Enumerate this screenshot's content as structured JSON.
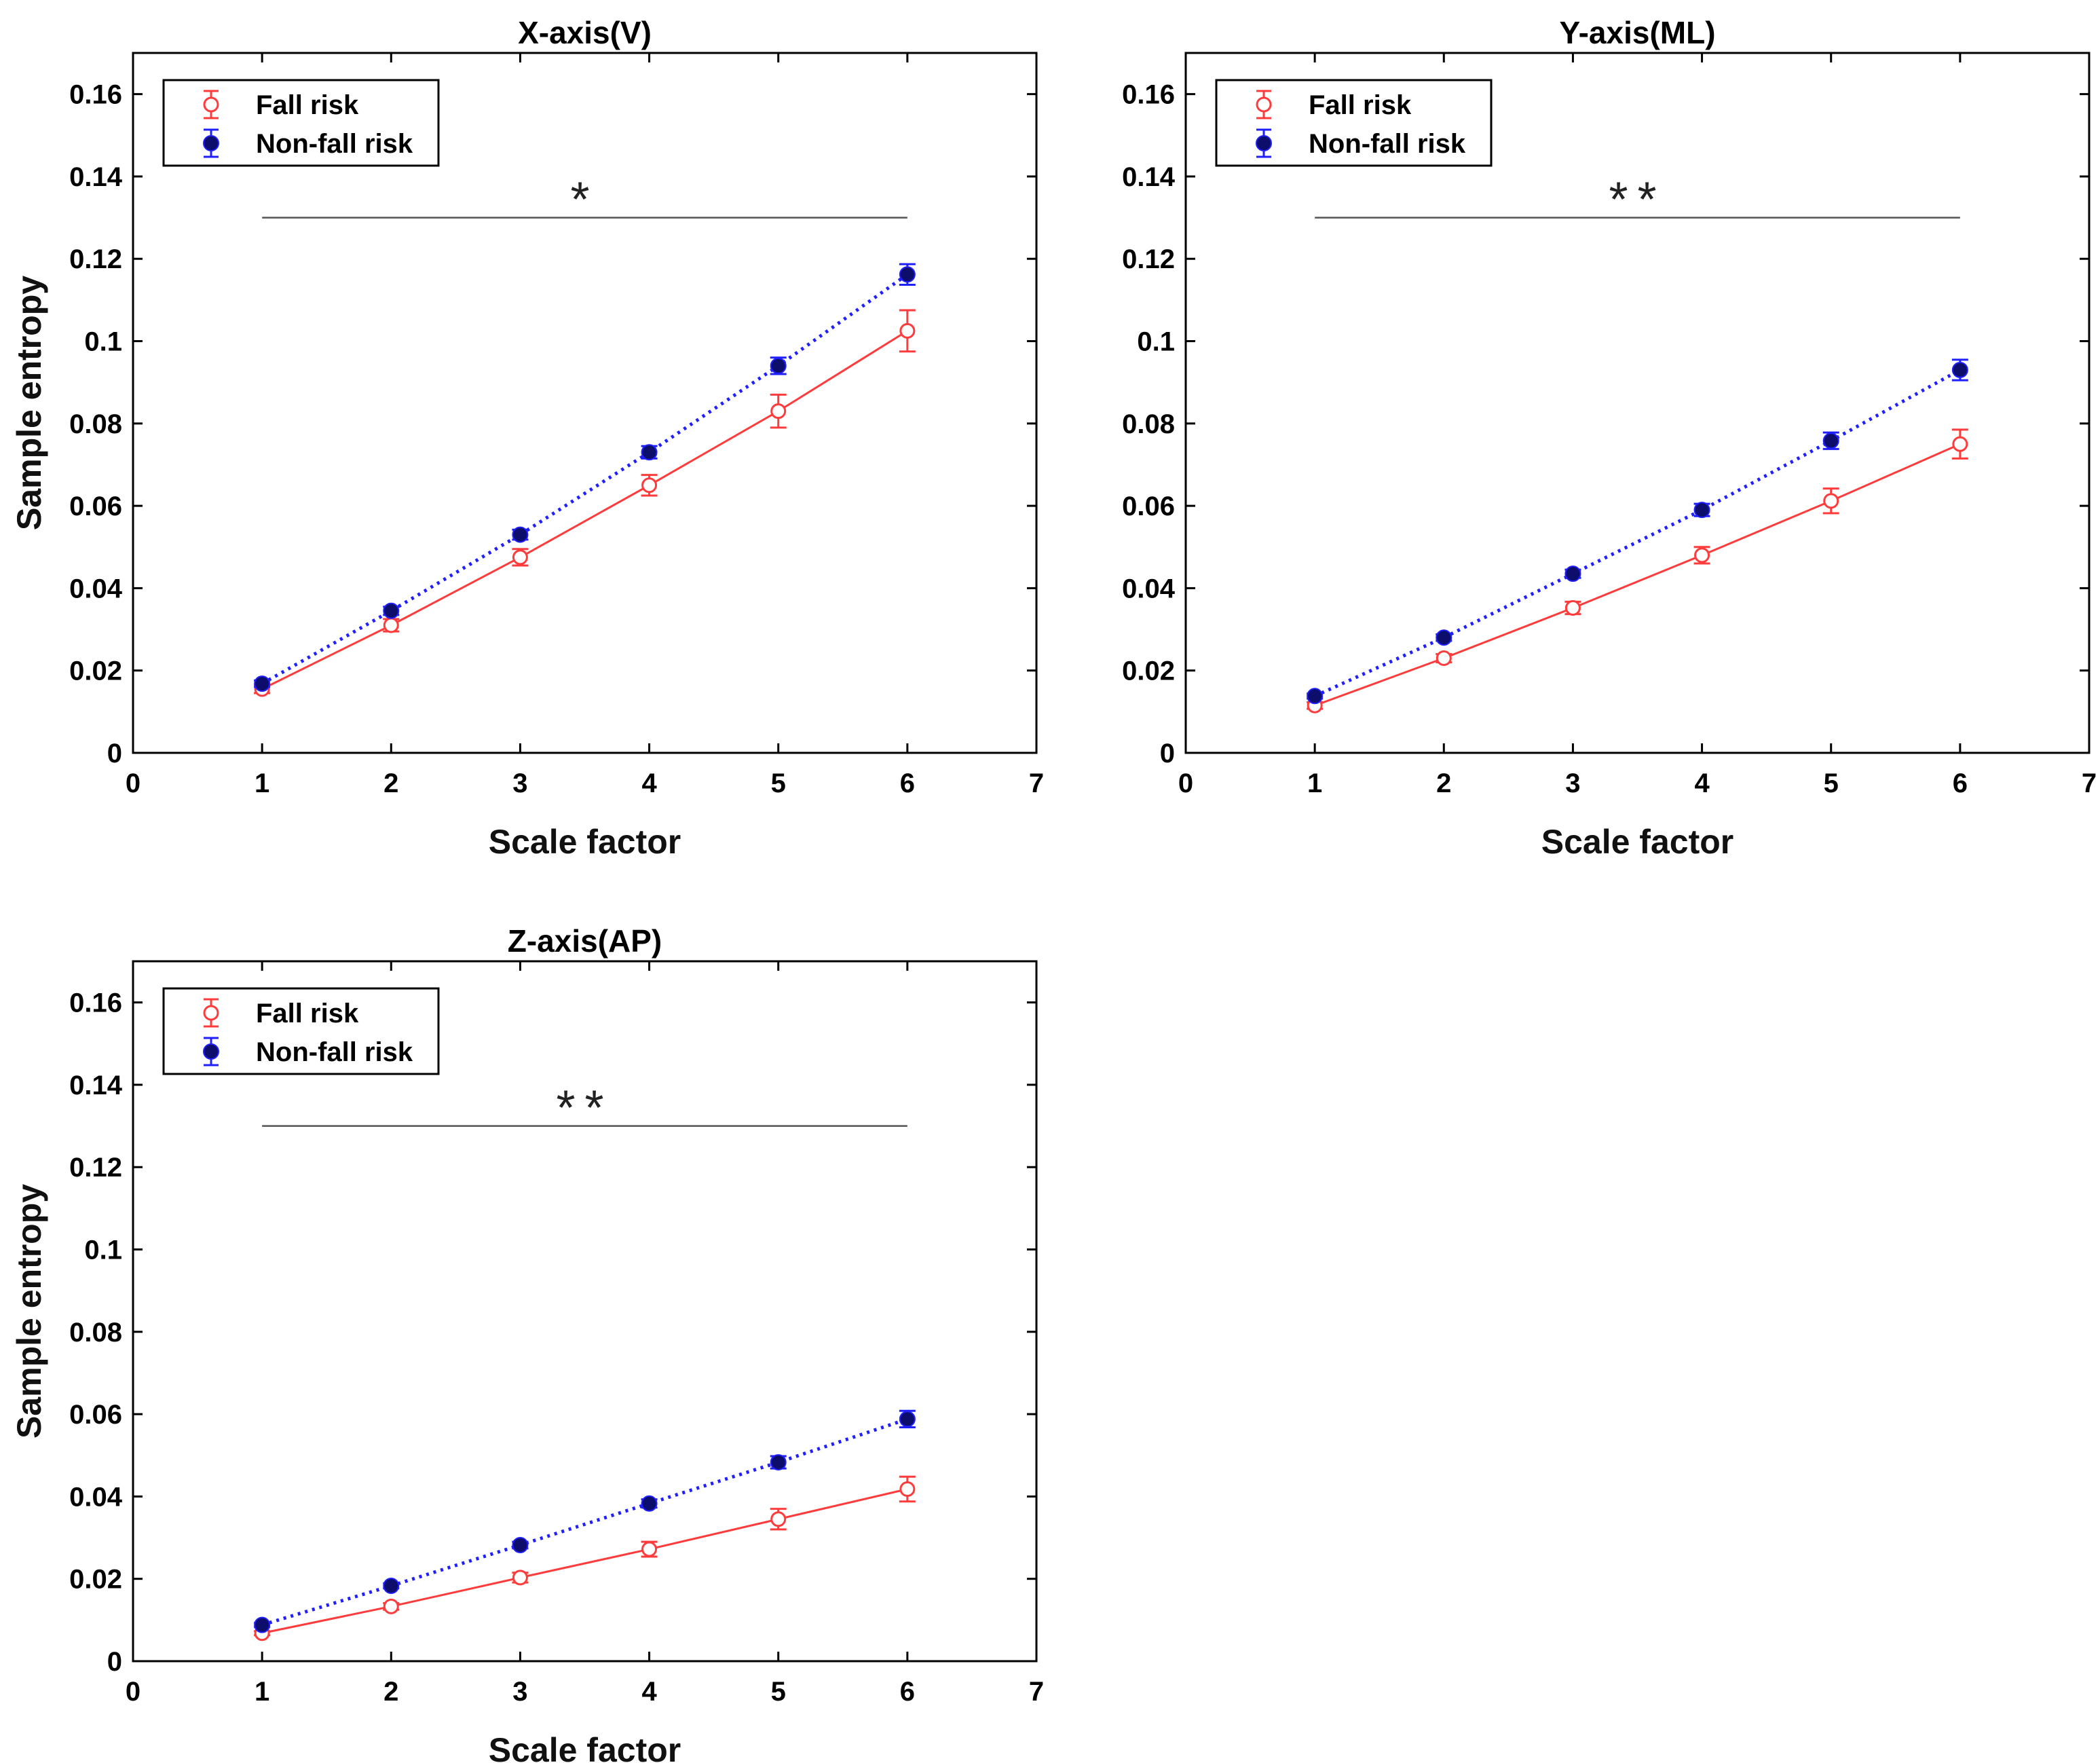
{
  "figure": {
    "xlabel": "Scale factor",
    "ylabel": "Sample entropy",
    "legend_labels": [
      "Fall risk",
      "Non-fall risk"
    ]
  },
  "chart_data": [
    {
      "type": "line",
      "title": "X-axis(V)",
      "xlabel": "Scale factor",
      "ylabel": "Sample entropy",
      "xlim": [
        0,
        7
      ],
      "ylim": [
        0,
        0.17
      ],
      "xticks": [
        "0",
        "1",
        "2",
        "3",
        "4",
        "5",
        "6",
        "7"
      ],
      "yticks": [
        "0",
        "0.02",
        "0.04",
        "0.06",
        "0.08",
        "0.1",
        "0.12",
        "0.14",
        "0.16"
      ],
      "x": [
        1,
        2,
        3,
        4,
        5,
        6
      ],
      "series": [
        {
          "name": "Fall risk",
          "color": "#ff3b3b",
          "line": "solid",
          "marker": "open-circle",
          "values": [
            0.0155,
            0.031,
            0.0475,
            0.065,
            0.083,
            0.1025
          ],
          "errors": [
            0.001,
            0.0015,
            0.002,
            0.0025,
            0.004,
            0.005
          ]
        },
        {
          "name": "Non-fall risk",
          "color": "#1f1fff",
          "marker_color": "#0d0d6b",
          "line": "dotted",
          "marker": "filled-circle",
          "values": [
            0.0168,
            0.0345,
            0.053,
            0.073,
            0.094,
            0.1162
          ],
          "errors": [
            0.0008,
            0.001,
            0.0012,
            0.0015,
            0.002,
            0.0025
          ]
        }
      ],
      "significance": {
        "label": "*",
        "x_from": 1,
        "x_to": 6,
        "y": 0.13
      }
    },
    {
      "type": "line",
      "title": "Y-axis(ML)",
      "xlabel": "Scale factor",
      "ylabel": "Sample entropy",
      "xlim": [
        0,
        7
      ],
      "ylim": [
        0,
        0.17
      ],
      "xticks": [
        "0",
        "1",
        "2",
        "3",
        "4",
        "5",
        "6",
        "7"
      ],
      "yticks": [
        "0",
        "0.02",
        "0.04",
        "0.06",
        "0.08",
        "0.1",
        "0.12",
        "0.14",
        "0.16"
      ],
      "x": [
        1,
        2,
        3,
        4,
        5,
        6
      ],
      "series": [
        {
          "name": "Fall risk",
          "color": "#ff3b3b",
          "line": "solid",
          "marker": "open-circle",
          "values": [
            0.0115,
            0.023,
            0.0352,
            0.048,
            0.0612,
            0.075
          ],
          "errors": [
            0.0008,
            0.001,
            0.0015,
            0.002,
            0.003,
            0.0035
          ]
        },
        {
          "name": "Non-fall risk",
          "color": "#1f1fff",
          "marker_color": "#0d0d6b",
          "line": "dotted",
          "marker": "filled-circle",
          "values": [
            0.0138,
            0.028,
            0.0435,
            0.059,
            0.0758,
            0.093
          ],
          "errors": [
            0.0006,
            0.0008,
            0.001,
            0.0015,
            0.002,
            0.0025
          ]
        }
      ],
      "significance": {
        "label": "**",
        "x_from": 1,
        "x_to": 6,
        "y": 0.13
      }
    },
    {
      "type": "line",
      "title": "Z-axis(AP)",
      "xlabel": "Scale factor",
      "ylabel": "Sample entropy",
      "xlim": [
        0,
        7
      ],
      "ylim": [
        0,
        0.17
      ],
      "xticks": [
        "0",
        "1",
        "2",
        "3",
        "4",
        "5",
        "6",
        "7"
      ],
      "yticks": [
        "0",
        "0.02",
        "0.04",
        "0.06",
        "0.08",
        "0.1",
        "0.12",
        "0.14",
        "0.16"
      ],
      "x": [
        1,
        2,
        3,
        4,
        5,
        6
      ],
      "series": [
        {
          "name": "Fall risk",
          "color": "#ff3b3b",
          "line": "solid",
          "marker": "open-circle",
          "values": [
            0.0068,
            0.0133,
            0.0203,
            0.0272,
            0.0345,
            0.0418
          ],
          "errors": [
            0.0005,
            0.0008,
            0.0012,
            0.0018,
            0.0025,
            0.003
          ]
        },
        {
          "name": "Non-fall risk",
          "color": "#1f1fff",
          "marker_color": "#0d0d6b",
          "line": "dotted",
          "marker": "filled-circle",
          "values": [
            0.0088,
            0.0183,
            0.0282,
            0.0383,
            0.0483,
            0.0588
          ],
          "errors": [
            0.0005,
            0.0006,
            0.0008,
            0.001,
            0.0015,
            0.002
          ]
        }
      ],
      "significance": {
        "label": "**",
        "x_from": 1,
        "x_to": 6,
        "y": 0.13
      }
    }
  ]
}
